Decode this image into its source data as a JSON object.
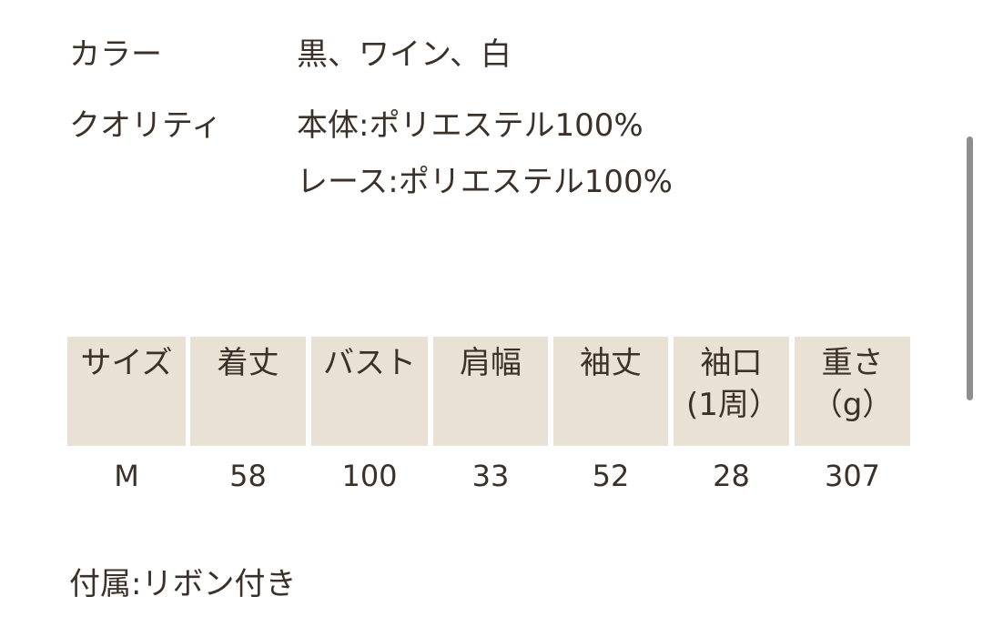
{
  "details": [
    {
      "label": "カラー",
      "value": "黒、ワイン、白"
    },
    {
      "label": "クオリティ",
      "value": "本体:ポリエステル100%",
      "value2": "レース:ポリエステル100%"
    }
  ],
  "table": {
    "headers": [
      "サイズ",
      "着丈",
      "バスト",
      "肩幅",
      "袖丈",
      "袖口(1周）",
      "重さ（g）"
    ],
    "rows": [
      [
        "M",
        "58",
        "100",
        "33",
        "52",
        "28",
        "307"
      ]
    ]
  },
  "note": "付属:リボン付き",
  "colors": {
    "header_bg": "#e9e1d4",
    "text": "#3b3128"
  }
}
